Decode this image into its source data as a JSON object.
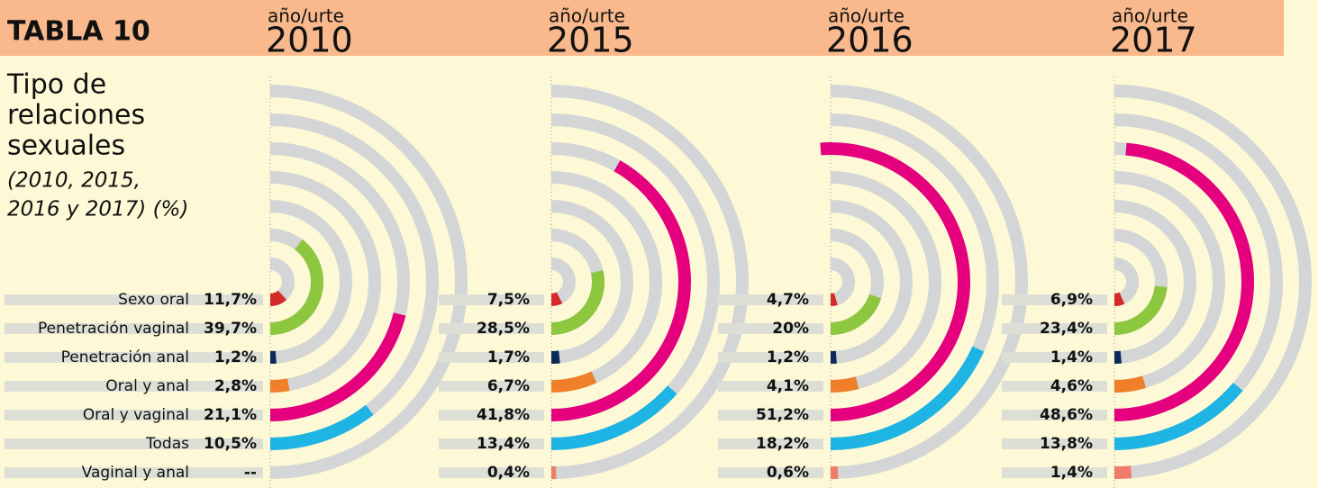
{
  "header": {
    "label": "TABLA 10"
  },
  "title_lines": [
    "Tipo de",
    "relaciones",
    "sexuales"
  ],
  "subtitle_lines": [
    "(2010, 2015,",
    "2016 y 2017) (%)"
  ],
  "chart_data": [
    {
      "type": "radial_bar",
      "subtitle": "año/urte",
      "title": "2010",
      "categories": [
        "Sexo oral",
        "Penetración vaginal",
        "Penetración anal",
        "Oral y anal",
        "Oral y vaginal",
        "Todas",
        "Vaginal y anal"
      ],
      "values": [
        11.7,
        39.7,
        1.2,
        2.8,
        21.1,
        10.5,
        null
      ],
      "value_labels": [
        "11,7%",
        "39,7%",
        "1,2%",
        "2,8%",
        "21,1%",
        "10,5%",
        "--"
      ],
      "colors": [
        "#d42a2a",
        "#8dc63f",
        "#0b2a5b",
        "#f07f2a",
        "#e5007e",
        "#1eb4e3",
        "#f07b6b"
      ],
      "ylim": [
        0,
        50
      ]
    },
    {
      "type": "radial_bar",
      "subtitle": "año/urte",
      "title": "2015",
      "values": [
        7.5,
        28.5,
        1.7,
        6.7,
        41.8,
        13.4,
        0.4
      ],
      "value_labels": [
        "7,5%",
        "28,5%",
        "1,7%",
        "6,7%",
        "41,8%",
        "13,4%",
        "0,4%"
      ],
      "colors": [
        "#d42a2a",
        "#8dc63f",
        "#0b2a5b",
        "#f07f2a",
        "#e5007e",
        "#1eb4e3",
        "#f07b6b"
      ],
      "ylim": [
        0,
        50
      ]
    },
    {
      "type": "radial_bar",
      "subtitle": "año/urte",
      "title": "2016",
      "values": [
        4.7,
        20,
        1.2,
        4.1,
        51.2,
        18.2,
        0.6
      ],
      "value_labels": [
        "4,7%",
        "20%",
        "1,2%",
        "4,1%",
        "51,2%",
        "18,2%",
        "0,6%"
      ],
      "colors": [
        "#d42a2a",
        "#8dc63f",
        "#0b2a5b",
        "#f07f2a",
        "#e5007e",
        "#1eb4e3",
        "#f07b6b"
      ],
      "ylim": [
        0,
        50
      ]
    },
    {
      "type": "radial_bar",
      "subtitle": "año/urte",
      "title": "2017",
      "values": [
        6.9,
        23.4,
        1.4,
        4.6,
        48.6,
        13.8,
        1.4
      ],
      "value_labels": [
        "6,9%",
        "23,4%",
        "1,4%",
        "4,6%",
        "48,6%",
        "13,8%",
        "1,4%"
      ],
      "colors": [
        "#d42a2a",
        "#8dc63f",
        "#0b2a5b",
        "#f07f2a",
        "#e5007e",
        "#1eb4e3",
        "#f07b6b"
      ],
      "ylim": [
        0,
        50
      ]
    }
  ]
}
